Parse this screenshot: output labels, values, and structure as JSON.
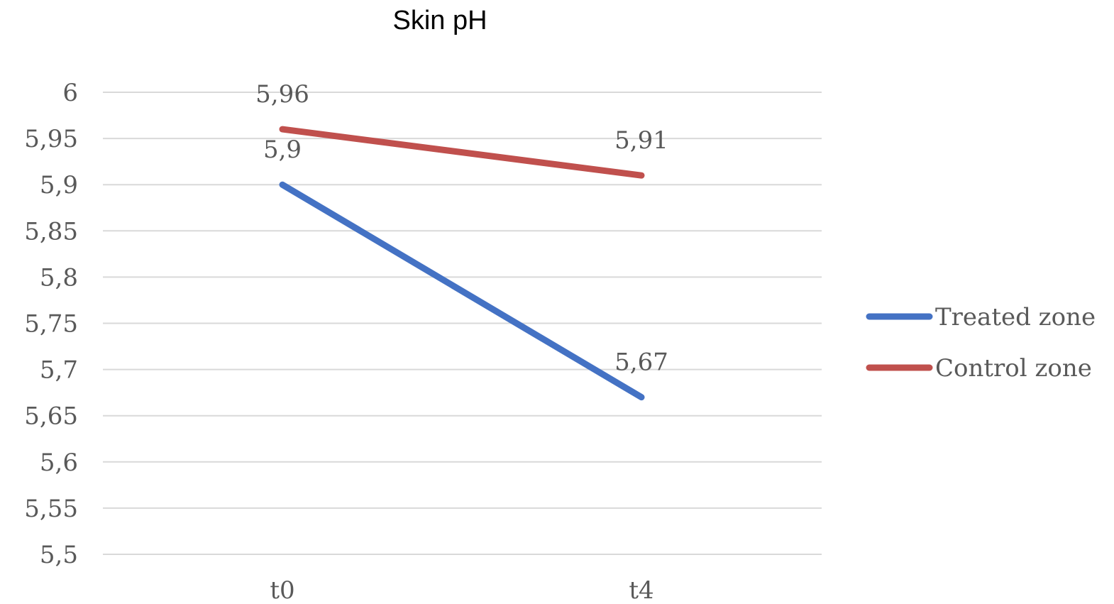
{
  "chart_data": {
    "type": "line",
    "title": "Skin pH",
    "x": [
      "t0",
      "t4"
    ],
    "ylim": [
      5.5,
      6
    ],
    "y_ticks": [
      "6",
      "5,95",
      "5,9",
      "5,85",
      "5,8",
      "5,75",
      "5,7",
      "5,65",
      "5,6",
      "5,55",
      "5,5"
    ],
    "grid": true,
    "legend_position": "right",
    "series": [
      {
        "name": "Treated zone",
        "values": [
          5.9,
          5.67
        ],
        "labels": [
          "5,9",
          "5,67"
        ],
        "color": "#4472c4"
      },
      {
        "name": "Control zone",
        "values": [
          5.96,
          5.91
        ],
        "labels": [
          "5,96",
          "5,91"
        ],
        "color": "#c0504d"
      }
    ]
  }
}
